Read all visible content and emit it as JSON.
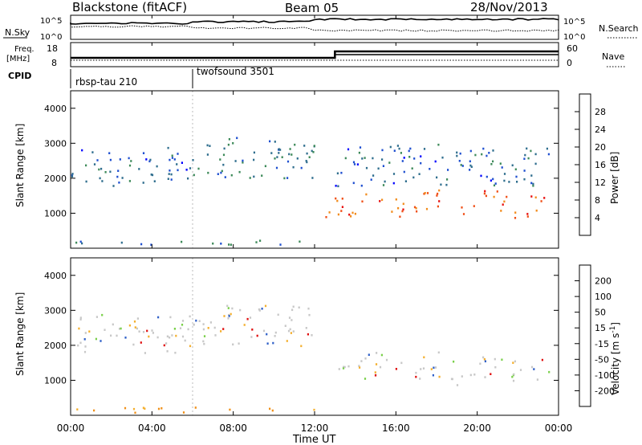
{
  "header": {
    "station": "Blackstone (fitACF)",
    "beam": "Beam 05",
    "date": "28/Nov/2013"
  },
  "top_panels": {
    "nsky_label": "N.Sky",
    "nsky_ticks": [
      "10^5",
      "10^0"
    ],
    "nsearch_label": "N.Search",
    "nsearch_ticks": [
      "10^5",
      "10^0"
    ],
    "freq_label_1": "Freq.",
    "freq_label_2": "[MHz]",
    "freq_ticks": [
      "18",
      "8"
    ],
    "nave_label": "Nave",
    "nave_ticks": [
      "60",
      "0"
    ],
    "cpid_label": "CPID",
    "cpid_segments": [
      "rbsp-tau 210",
      "twofsound 3501"
    ]
  },
  "power_panel": {
    "ylabel": "Slant Range [km]",
    "yticks": [
      "4000",
      "3000",
      "2000",
      "1000"
    ],
    "colorbar_label": "Power [dB]",
    "colorbar_ticks": [
      "28",
      "24",
      "20",
      "16",
      "12",
      "8",
      "4"
    ]
  },
  "velocity_panel": {
    "ylabel": "Slant Range [km]",
    "yticks": [
      "4000",
      "3000",
      "2000",
      "1000"
    ],
    "colorbar_label": "Velocity [m s",
    "colorbar_label_sup": "-1",
    "colorbar_label_end": "]",
    "colorbar_ticks": [
      "200",
      "100",
      "50",
      "15",
      "-15",
      "-50",
      "-100",
      "-200"
    ]
  },
  "xaxis": {
    "label": "Time UT",
    "ticks": [
      "00:00",
      "04:00",
      "08:00",
      "12:00",
      "16:00",
      "20:00",
      "00:00"
    ]
  },
  "colors": {
    "power_scale": [
      "#0000ff",
      "#1f4fd0",
      "#2f6e8e",
      "#3e8a5a",
      "#58a83a",
      "#f0c020",
      "#f28c1c",
      "#f05018",
      "#e81010"
    ],
    "velocity_scale": [
      "#e01010",
      "#f05a14",
      "#f09018",
      "#f4b030",
      "#c8c8c8",
      "#7ad04a",
      "#3a9a3a",
      "#3060c8",
      "#1818c0"
    ]
  },
  "chart_data": {
    "type": "heatmap",
    "title": "Blackstone (fitACF)  Beam 05  28/Nov/2013",
    "xlabel": "Time UT",
    "ylabel": "Slant Range [km]",
    "x_range_hours": [
      0,
      24
    ],
    "y_range_km": [
      0,
      4500
    ],
    "panels": [
      {
        "name": "Power [dB]",
        "scale": [
          0,
          30
        ],
        "bands": [
          {
            "t": [
              0.0,
              6.0
            ],
            "range_km": [
              1800,
              2900
            ],
            "value": 6,
            "note": "scattered"
          },
          {
            "t": [
              6.0,
              12.0
            ],
            "range_km": [
              2000,
              3200
            ],
            "value": 8
          },
          {
            "t": [
              12.5,
              13.0
            ],
            "range_km": [
              900,
              1600
            ],
            "value": 22
          },
          {
            "t": [
              13.0,
              23.5
            ],
            "range_km": [
              1000,
              1600
            ],
            "value": 26
          },
          {
            "t": [
              13.0,
              23.5
            ],
            "range_km": [
              1800,
              3000
            ],
            "value": 6
          },
          {
            "t": [
              0.0,
              12.0
            ],
            "range_km": [
              100,
              250
            ],
            "value": 8
          }
        ]
      },
      {
        "name": "Velocity [m s-1]",
        "scale": [
          -250,
          250
        ],
        "bands": [
          {
            "t": [
              0.0,
              6.0
            ],
            "range_km": [
              1800,
              2900
            ],
            "value": 0
          },
          {
            "t": [
              6.0,
              12.0
            ],
            "range_km": [
              2000,
              3200
            ],
            "value": 0
          },
          {
            "t": [
              13.0,
              23.5
            ],
            "range_km": [
              1000,
              1700
            ],
            "value": 0
          },
          {
            "t": [
              0.0,
              12.0
            ],
            "range_km": [
              100,
              250
            ],
            "value": -80
          }
        ]
      }
    ]
  }
}
